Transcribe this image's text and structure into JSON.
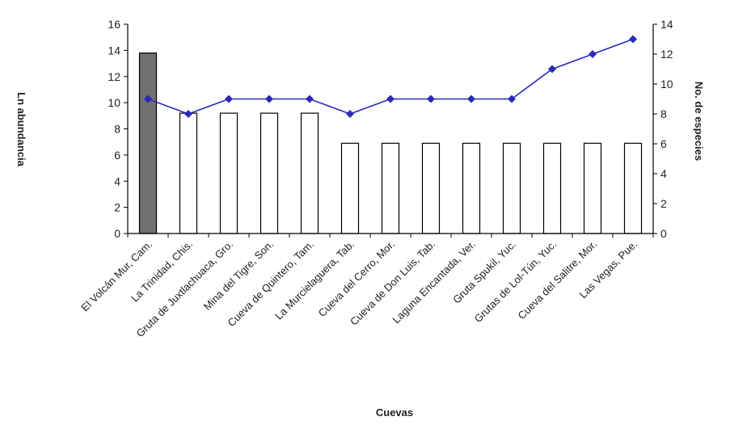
{
  "chart_data": {
    "type": "bar+line",
    "categories": [
      "El Volcán Mur, Cam.",
      "La Trinidad, Chis.",
      "Gruta de Juxtlachuaca, Gro.",
      "Mina del Tigre, Son.",
      "Cueva de Quintero, Tam.",
      "La Murcielaguera, Tab.",
      "Cueva del Cerro, Mor.",
      "Cueva de Don Luis, Tab.",
      "Laguna Encantada, Ver.",
      "Gruta Spukil, Yuc.",
      "Grutas de Lol-Tún, Yuc.",
      "Cueva del Salitre, Mor.",
      "Las Vegas, Pue."
    ],
    "bar_values": [
      13.8,
      9.2,
      9.2,
      9.2,
      9.2,
      6.9,
      6.9,
      6.9,
      6.9,
      6.9,
      6.9,
      6.9,
      6.9
    ],
    "bar_highlight_index": 0,
    "line_values": [
      9,
      8,
      9,
      9,
      9,
      8,
      9,
      9,
      9,
      9,
      11,
      12,
      13
    ],
    "ylabel_left": "Ln abundancia",
    "ylabel_right": "No. de especies",
    "xlabel": "Cuevas",
    "ylim_left": [
      0,
      16
    ],
    "ylim_right": [
      0,
      14
    ],
    "yticks_left": [
      0,
      2,
      4,
      6,
      8,
      10,
      12,
      14,
      16
    ],
    "yticks_right": [
      0,
      2,
      4,
      6,
      8,
      10,
      12,
      14
    ],
    "grid": false,
    "colors": {
      "bar_fill": "#ffffff",
      "bar_highlight_fill": "#707070",
      "bar_stroke": "#000000",
      "line": "#2a2ab8"
    }
  }
}
